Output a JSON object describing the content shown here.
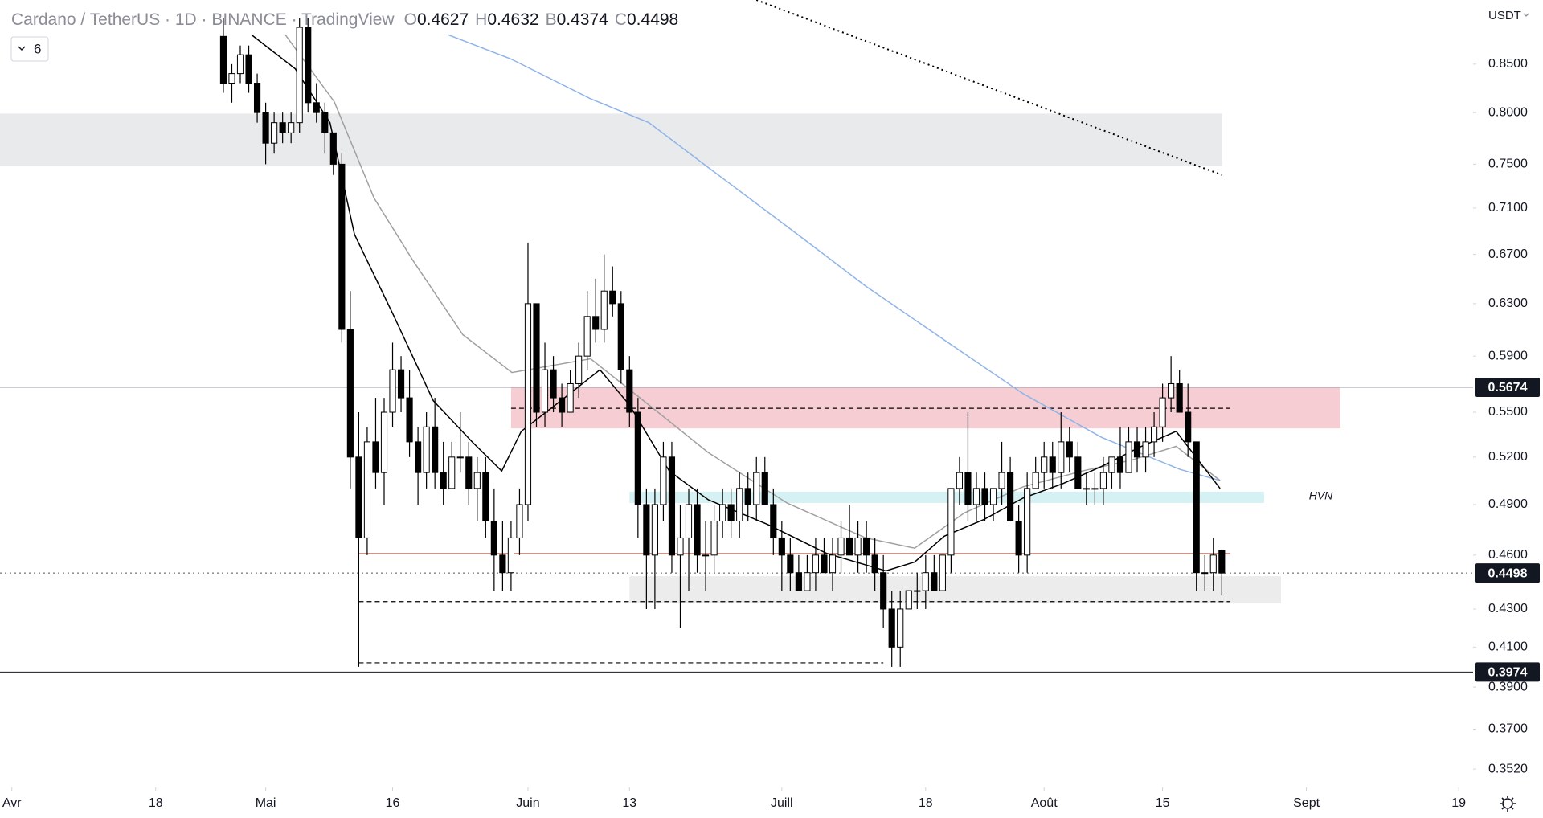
{
  "chart_data": {
    "type": "candlestick",
    "title": "Cardano / TetherUS · 1D · BINANCE · TradingView",
    "ohlc_letters": [
      "O",
      "H",
      "B",
      "C"
    ],
    "interval_button": "6",
    "currency": "USDT",
    "log_scale": true,
    "up_color": "#ffffff",
    "down_color": "#000000",
    "edge_color": "#000000",
    "xlim": [
      -1.4,
      172.7
    ],
    "xticks": [
      {
        "value": 0,
        "label": "Avr"
      },
      {
        "value": 17,
        "label": "18"
      },
      {
        "value": 30,
        "label": "Mai"
      },
      {
        "value": 45,
        "label": "16"
      },
      {
        "value": 61,
        "label": "Juin"
      },
      {
        "value": 73,
        "label": "13"
      },
      {
        "value": 91,
        "label": "Juill"
      },
      {
        "value": 108,
        "label": "18"
      },
      {
        "value": 122,
        "label": "Août"
      },
      {
        "value": 136,
        "label": "15"
      },
      {
        "value": 153,
        "label": "Sept"
      },
      {
        "value": 171,
        "label": "19"
      }
    ],
    "ylim": [
      0.344,
      0.921
    ],
    "yticks": [
      {
        "value": 0.85,
        "label": "0.8500"
      },
      {
        "value": 0.8,
        "label": "0.8000"
      },
      {
        "value": 0.75,
        "label": "0.7500"
      },
      {
        "value": 0.71,
        "label": "0.7100"
      },
      {
        "value": 0.67,
        "label": "0.6700"
      },
      {
        "value": 0.63,
        "label": "0.6300"
      },
      {
        "value": 0.59,
        "label": "0.5900"
      },
      {
        "value": 0.55,
        "label": "0.5500"
      },
      {
        "value": 0.52,
        "label": "0.5200"
      },
      {
        "value": 0.49,
        "label": "0.4900"
      },
      {
        "value": 0.46,
        "label": "0.4600"
      },
      {
        "value": 0.43,
        "label": "0.4300"
      },
      {
        "value": 0.41,
        "label": "0.4100"
      },
      {
        "value": 0.39,
        "label": "0.3900"
      },
      {
        "value": 0.37,
        "label": "0.3700"
      },
      {
        "value": 0.352,
        "label": "0.3520"
      }
    ],
    "x": [
      25,
      26,
      27,
      28,
      29,
      30,
      31,
      32,
      33,
      34,
      35,
      36,
      37,
      38,
      39,
      40,
      41,
      42,
      43,
      44,
      45,
      46,
      47,
      48,
      49,
      50,
      51,
      52,
      53,
      54,
      55,
      56,
      57,
      58,
      59,
      60,
      61,
      62,
      63,
      64,
      65,
      66,
      67,
      68,
      69,
      70,
      71,
      72,
      73,
      74,
      75,
      76,
      77,
      78,
      79,
      80,
      81,
      82,
      83,
      84,
      85,
      86,
      87,
      88,
      89,
      90,
      91,
      92,
      93,
      94,
      95,
      96,
      97,
      98,
      99,
      100,
      101,
      102,
      103,
      104,
      105,
      106,
      107,
      108,
      109,
      110,
      111,
      112,
      113,
      114,
      115,
      116,
      117,
      118,
      119,
      120,
      121,
      122,
      123,
      124,
      125,
      126,
      127,
      128,
      129,
      130,
      131,
      132,
      133,
      134,
      135,
      136,
      137,
      138,
      139,
      140,
      141,
      142,
      143
    ],
    "open": [
      0.88,
      0.83,
      0.84,
      0.86,
      0.83,
      0.8,
      0.77,
      0.79,
      0.78,
      0.79,
      0.89,
      0.81,
      0.8,
      0.78,
      0.75,
      0.61,
      0.52,
      0.47,
      0.53,
      0.51,
      0.55,
      0.58,
      0.56,
      0.53,
      0.51,
      0.54,
      0.51,
      0.5,
      0.52,
      0.52,
      0.5,
      0.51,
      0.48,
      0.46,
      0.45,
      0.47,
      0.49,
      0.63,
      0.55,
      0.58,
      0.56,
      0.55,
      0.57,
      0.59,
      0.62,
      0.61,
      0.64,
      0.63,
      0.58,
      0.55,
      0.49,
      0.46,
      0.49,
      0.52,
      0.46,
      0.47,
      0.49,
      0.46,
      0.46,
      0.48,
      0.49,
      0.48,
      0.5,
      0.49,
      0.51,
      0.49,
      0.47,
      0.46,
      0.45,
      0.44,
      0.45,
      0.46,
      0.45,
      0.46,
      0.47,
      0.46,
      0.47,
      0.46,
      0.45,
      0.43,
      0.41,
      0.43,
      0.44,
      0.44,
      0.45,
      0.44,
      0.46,
      0.5,
      0.51,
      0.49,
      0.5,
      0.49,
      0.5,
      0.51,
      0.48,
      0.46,
      0.5,
      0.51,
      0.52,
      0.51,
      0.53,
      0.52,
      0.5,
      0.5,
      0.5,
      0.51,
      0.52,
      0.51,
      0.53,
      0.52,
      0.53,
      0.54,
      0.56,
      0.57,
      0.55,
      0.53,
      0.45,
      0.45,
      0.4627
    ],
    "high": [
      0.9,
      0.85,
      0.87,
      0.87,
      0.84,
      0.81,
      0.8,
      0.8,
      0.8,
      0.9,
      0.9,
      0.83,
      0.81,
      0.78,
      0.76,
      0.64,
      0.55,
      0.54,
      0.56,
      0.56,
      0.6,
      0.59,
      0.58,
      0.54,
      0.55,
      0.56,
      0.53,
      0.53,
      0.55,
      0.53,
      0.52,
      0.52,
      0.5,
      0.48,
      0.48,
      0.5,
      0.68,
      0.63,
      0.6,
      0.59,
      0.57,
      0.58,
      0.6,
      0.64,
      0.65,
      0.67,
      0.66,
      0.64,
      0.59,
      0.56,
      0.5,
      0.5,
      0.53,
      0.53,
      0.49,
      0.5,
      0.5,
      0.48,
      0.49,
      0.5,
      0.5,
      0.51,
      0.51,
      0.52,
      0.52,
      0.5,
      0.48,
      0.47,
      0.46,
      0.46,
      0.47,
      0.47,
      0.47,
      0.48,
      0.49,
      0.48,
      0.48,
      0.47,
      0.46,
      0.44,
      0.44,
      0.44,
      0.45,
      0.46,
      0.46,
      0.46,
      0.5,
      0.52,
      0.55,
      0.51,
      0.51,
      0.5,
      0.53,
      0.52,
      0.49,
      0.51,
      0.52,
      0.53,
      0.53,
      0.55,
      0.54,
      0.53,
      0.51,
      0.51,
      0.52,
      0.52,
      0.54,
      0.54,
      0.54,
      0.54,
      0.55,
      0.57,
      0.59,
      0.58,
      0.57,
      0.53,
      0.46,
      0.47,
      0.4632
    ],
    "low": [
      0.82,
      0.81,
      0.83,
      0.82,
      0.79,
      0.75,
      0.76,
      0.77,
      0.77,
      0.78,
      0.8,
      0.79,
      0.76,
      0.74,
      0.6,
      0.5,
      0.4,
      0.46,
      0.5,
      0.49,
      0.54,
      0.55,
      0.52,
      0.49,
      0.5,
      0.5,
      0.49,
      0.5,
      0.51,
      0.49,
      0.48,
      0.47,
      0.44,
      0.44,
      0.44,
      0.46,
      0.48,
      0.54,
      0.54,
      0.55,
      0.54,
      0.55,
      0.56,
      0.58,
      0.6,
      0.6,
      0.62,
      0.57,
      0.54,
      0.47,
      0.43,
      0.43,
      0.48,
      0.45,
      0.42,
      0.44,
      0.45,
      0.44,
      0.45,
      0.47,
      0.47,
      0.47,
      0.48,
      0.48,
      0.49,
      0.46,
      0.44,
      0.44,
      0.44,
      0.44,
      0.44,
      0.45,
      0.44,
      0.45,
      0.46,
      0.45,
      0.45,
      0.44,
      0.42,
      0.4,
      0.4,
      0.43,
      0.43,
      0.43,
      0.44,
      0.44,
      0.45,
      0.49,
      0.48,
      0.48,
      0.48,
      0.48,
      0.49,
      0.48,
      0.45,
      0.45,
      0.5,
      0.5,
      0.5,
      0.5,
      0.51,
      0.5,
      0.49,
      0.49,
      0.49,
      0.5,
      0.5,
      0.51,
      0.51,
      0.51,
      0.52,
      0.53,
      0.55,
      0.55,
      0.52,
      0.44,
      0.44,
      0.44,
      0.4374
    ],
    "close": [
      0.83,
      0.84,
      0.86,
      0.83,
      0.8,
      0.77,
      0.79,
      0.78,
      0.79,
      0.89,
      0.81,
      0.8,
      0.78,
      0.75,
      0.61,
      0.52,
      0.47,
      0.53,
      0.51,
      0.55,
      0.58,
      0.56,
      0.53,
      0.51,
      0.54,
      0.51,
      0.5,
      0.52,
      0.52,
      0.5,
      0.51,
      0.48,
      0.46,
      0.45,
      0.47,
      0.49,
      0.63,
      0.55,
      0.58,
      0.56,
      0.55,
      0.57,
      0.59,
      0.62,
      0.61,
      0.64,
      0.63,
      0.58,
      0.55,
      0.49,
      0.46,
      0.49,
      0.52,
      0.46,
      0.47,
      0.49,
      0.46,
      0.46,
      0.48,
      0.49,
      0.48,
      0.5,
      0.49,
      0.51,
      0.49,
      0.47,
      0.46,
      0.45,
      0.44,
      0.45,
      0.46,
      0.45,
      0.46,
      0.47,
      0.46,
      0.47,
      0.46,
      0.45,
      0.43,
      0.41,
      0.43,
      0.44,
      0.44,
      0.45,
      0.44,
      0.46,
      0.5,
      0.51,
      0.49,
      0.5,
      0.49,
      0.5,
      0.51,
      0.48,
      0.46,
      0.5,
      0.51,
      0.52,
      0.51,
      0.53,
      0.52,
      0.5,
      0.5,
      0.5,
      0.51,
      0.52,
      0.51,
      0.53,
      0.52,
      0.53,
      0.54,
      0.56,
      0.57,
      0.55,
      0.53,
      0.45,
      0.45,
      0.46,
      0.4498
    ],
    "zones": [
      {
        "x0": -1.4,
        "x1": 143,
        "ymin": 0.748,
        "ymax": 0.799,
        "color": "#e9eaec"
      },
      {
        "x0": 59,
        "x1": 157,
        "ymin": 0.539,
        "ymax": 0.568,
        "color": "#f6cdd3"
      },
      {
        "x0": 73,
        "x1": 148,
        "ymin": 0.491,
        "ymax": 0.498,
        "color": "#d6f1f3"
      },
      {
        "x0": 73,
        "x1": 150,
        "ymin": 0.433,
        "ymax": 0.448,
        "color": "#ececec"
      }
    ],
    "levels": [
      {
        "value": 0.5527,
        "x0": 59,
        "x1": 144,
        "color": "#000000",
        "style": "dashed"
      },
      {
        "value": 0.434,
        "x0": 41,
        "x1": 144,
        "color": "#000000",
        "style": "dashed"
      },
      {
        "value": 0.402,
        "x0": 41,
        "x1": 103,
        "color": "#000000",
        "style": "dashed"
      },
      {
        "value": 0.461,
        "x0": 41,
        "x1": 144,
        "color": "#e07b6a",
        "style": "solid"
      }
    ],
    "price_lines": [
      {
        "value": 0.5674,
        "color": "#9598a1",
        "style": "solid"
      },
      {
        "value": 0.4498,
        "color": "#555555",
        "style": "dotted"
      },
      {
        "value": 0.3974,
        "color": "#131722",
        "style": "solid"
      }
    ],
    "lines": [
      {
        "color": "#8fb4e8",
        "style": "solid",
        "x": [
          51.5,
          59.1,
          68.4,
          75.3,
          82.3,
          91.6,
          100.9,
          110.2,
          119.5,
          128.8,
          138.1,
          142.8
        ],
        "values": [
          0.882,
          0.855,
          0.814,
          0.79,
          0.747,
          0.694,
          0.644,
          0.602,
          0.563,
          0.533,
          0.512,
          0.505
        ]
      },
      {
        "color": "#a0a0a0",
        "style": "solid",
        "x": [
          32.3,
          38.1,
          42.8,
          47.4,
          53.3,
          59.1,
          68.4,
          75.3,
          82.3,
          91.6,
          100.9,
          106.7,
          112.6,
          119.5,
          126.5,
          132.3,
          137.6,
          142.8
        ],
        "values": [
          0.882,
          0.811,
          0.719,
          0.665,
          0.606,
          0.578,
          0.588,
          0.555,
          0.523,
          0.491,
          0.47,
          0.464,
          0.485,
          0.501,
          0.511,
          0.518,
          0.527,
          0.505
        ]
      },
      {
        "color": "#000000",
        "style": "solid",
        "x": [
          28.3,
          33.5,
          37.6,
          40.5,
          45.1,
          49.8,
          54.4,
          57.9,
          60.2,
          64.9,
          69.5,
          73,
          77.7,
          82.3,
          89.3,
          96.3,
          103.3,
          106.7,
          110.2,
          114.9,
          119.5,
          124.2,
          128.8,
          133.5,
          137.6,
          142.8
        ],
        "values": [
          0.882,
          0.845,
          0.79,
          0.687,
          0.621,
          0.558,
          0.53,
          0.511,
          0.537,
          0.558,
          0.58,
          0.555,
          0.511,
          0.493,
          0.478,
          0.461,
          0.451,
          0.456,
          0.471,
          0.481,
          0.494,
          0.503,
          0.514,
          0.527,
          0.537,
          0.5
        ]
      },
      {
        "color": "#000000",
        "style": "dotted",
        "x": [
          88,
          143
        ],
        "values": [
          0.921,
          0.74
        ]
      }
    ],
    "annotations": [
      {
        "text": "HVN",
        "x": 154.7,
        "y": 0.495
      }
    ]
  }
}
